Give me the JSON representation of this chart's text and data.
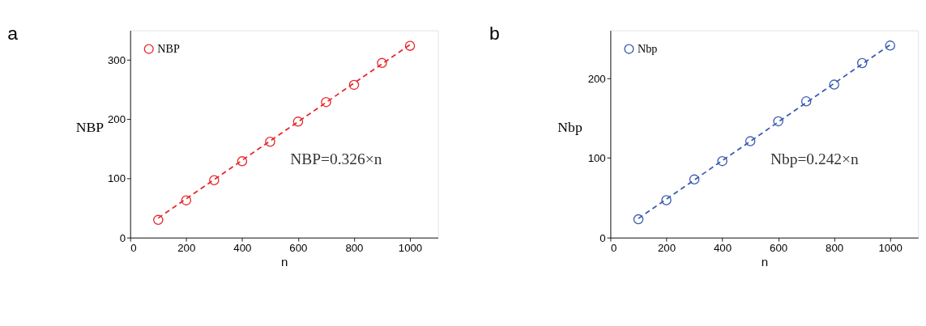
{
  "chart_data": [
    {
      "type": "scatter",
      "title": "a",
      "xlabel": "n",
      "ylabel": "NBP",
      "xlim": [
        0,
        1100
      ],
      "xticks": [
        0,
        200,
        400,
        600,
        800,
        1000
      ],
      "ylim": [
        0,
        350
      ],
      "yticks": [
        0,
        100,
        200,
        300
      ],
      "grid": false,
      "legend": "top left",
      "annotations": [
        "NBP=0.326×n"
      ],
      "series": [
        {
          "name": "NBP",
          "color": "#e8282b",
          "marker": "circle",
          "x": [
            100,
            200,
            300,
            400,
            500,
            600,
            700,
            800,
            900,
            1000
          ],
          "values": [
            30,
            63,
            97,
            129,
            162,
            196,
            229,
            258,
            295,
            324
          ]
        },
        {
          "type": "line",
          "line_style": "dashed",
          "color": "#e8282b",
          "marker": "none",
          "x": [
            100,
            1000
          ],
          "values": [
            33,
            326
          ]
        }
      ]
    },
    {
      "type": "scatter",
      "title": "b",
      "xlabel": "n",
      "ylabel": "Nbp",
      "xlim": [
        0,
        1100
      ],
      "xticks": [
        0,
        200,
        400,
        600,
        800,
        1000
      ],
      "ylim": [
        0,
        260
      ],
      "yticks": [
        0,
        100,
        200
      ],
      "grid": false,
      "legend": "top left",
      "annotations": [
        "Nbp=0.242×n"
      ],
      "series": [
        {
          "name": "Nbp",
          "color": "#3a5bb0",
          "marker": "circle",
          "x": [
            100,
            200,
            300,
            400,
            500,
            600,
            700,
            800,
            900,
            1000
          ],
          "values": [
            23,
            47,
            73,
            96,
            121,
            146,
            171,
            192,
            219,
            241
          ]
        },
        {
          "type": "line",
          "line_style": "dashed",
          "color": "#3a5bb0",
          "marker": "none",
          "x": [
            100,
            1000
          ],
          "values": [
            24,
            242
          ]
        }
      ]
    }
  ]
}
